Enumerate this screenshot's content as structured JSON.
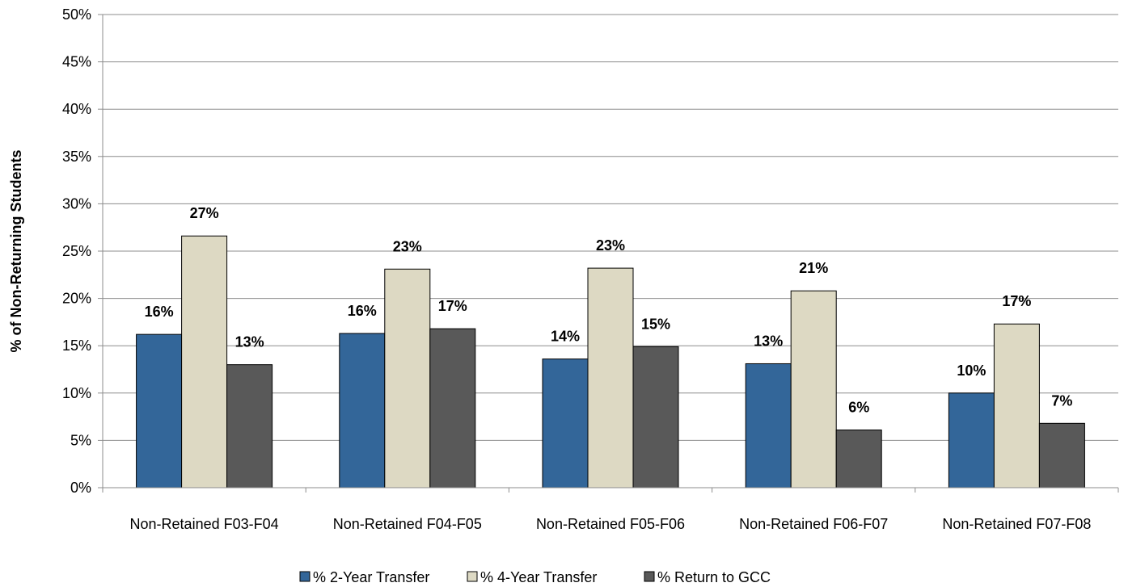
{
  "chart_data": {
    "type": "bar",
    "title": "",
    "xlabel": "",
    "ylabel": "% of Non-Returning Students",
    "ylim": [
      0,
      50
    ],
    "yticks": [
      0,
      5,
      10,
      15,
      20,
      25,
      30,
      35,
      40,
      45,
      50
    ],
    "ytick_suffix": "%",
    "grid": true,
    "legend_position": "bottom",
    "categories": [
      "Non-Retained F03-F04",
      "Non-Retained F04-F05",
      "Non-Retained F05-F06",
      "Non-Retained F06-F07",
      "Non-Retained F07-F08"
    ],
    "series": [
      {
        "name": "% 2-Year Transfer",
        "color": "#336699",
        "values": [
          16.2,
          16.3,
          13.6,
          13.1,
          10.0
        ],
        "labels": [
          "16%",
          "16%",
          "14%",
          "13%",
          "10%"
        ]
      },
      {
        "name": "% 4-Year Transfer",
        "color": "#DDD9C3",
        "values": [
          26.6,
          23.1,
          23.2,
          20.8,
          17.3
        ],
        "labels": [
          "27%",
          "23%",
          "23%",
          "21%",
          "17%"
        ]
      },
      {
        "name": "% Return to GCC",
        "color": "#595959",
        "values": [
          13.0,
          16.8,
          14.9,
          6.1,
          6.8
        ],
        "labels": [
          "13%",
          "17%",
          "15%",
          "6%",
          "7%"
        ]
      }
    ]
  }
}
